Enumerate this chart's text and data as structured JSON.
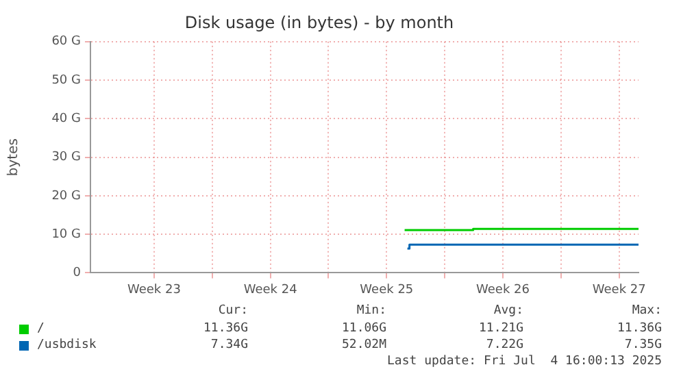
{
  "chart_data": {
    "type": "line",
    "title": "Disk usage (in bytes) - by month",
    "ylabel": "bytes",
    "xlim": [
      "2025-06-01T16:00",
      "2025-07-04T16:00"
    ],
    "xticks": [
      {
        "value": "2025-06-05T12:00",
        "label": "Week 23"
      },
      {
        "value": "2025-06-09",
        "label": null
      },
      {
        "value": "2025-06-12T12:00",
        "label": "Week 24"
      },
      {
        "value": "2025-06-16",
        "label": null
      },
      {
        "value": "2025-06-19T12:00",
        "label": "Week 25"
      },
      {
        "value": "2025-06-23",
        "label": null
      },
      {
        "value": "2025-06-26T12:00",
        "label": "Week 26"
      },
      {
        "value": "2025-06-30",
        "label": null
      },
      {
        "value": "2025-07-03T12:00",
        "label": "Week 27"
      }
    ],
    "ylim": [
      0,
      60
    ],
    "yticks": [
      0,
      {
        "value": 10,
        "label": "10 G"
      },
      {
        "value": 20,
        "label": "20 G"
      },
      {
        "value": 30,
        "label": "30 G"
      },
      {
        "value": 40,
        "label": "40 G"
      },
      {
        "value": 50,
        "label": "50 G"
      },
      {
        "value": 60,
        "label": "60 G"
      }
    ],
    "series": [
      {
        "name": "/",
        "color": "#00cc00",
        "type": "step",
        "x": [
          "2025-06-20T14:00",
          "2025-06-24T17:00",
          "2025-07-04T16:00"
        ],
        "values": [
          11.1,
          11.4,
          11.4
        ]
      },
      {
        "name": "/usbdisk",
        "color": "#0066b3",
        "type": "step",
        "x": [
          "2025-06-20T18:00",
          "2025-06-20T21:00",
          "2025-07-04T16:00"
        ],
        "values": [
          6.3,
          7.3,
          7.3
        ]
      }
    ],
    "grid": true,
    "legend": "bottom",
    "marker": "none",
    "annotations": [
      "Cur:",
      "Min:",
      "Avg:",
      "Max:",
      "11.36G",
      "11.06G",
      "11.21G",
      "11.36G",
      "7.34G",
      "52.02M",
      "7.22G",
      "7.35G",
      "Last update: Fri Jul  4 16:00:13 2025"
    ]
  }
}
